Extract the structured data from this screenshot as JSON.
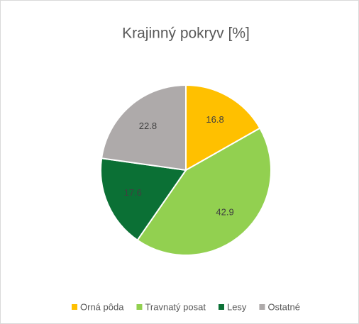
{
  "chart_data": {
    "type": "pie",
    "title": "Krajinný pokryv [%]",
    "categories": [
      "Orná pôda",
      "Travnatý posat",
      "Lesy",
      "Ostatné"
    ],
    "values": [
      16.8,
      42.9,
      17.6,
      22.8
    ],
    "colors": [
      "#ffc000",
      "#92d050",
      "#0b7035",
      "#aeaaaa"
    ],
    "legend": "bottom"
  }
}
